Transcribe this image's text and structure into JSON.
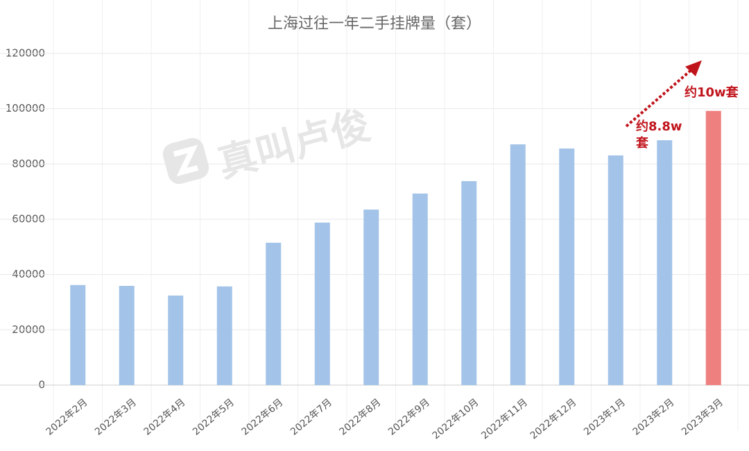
{
  "chart_data": {
    "type": "bar",
    "title": "上海过往一年二手挂牌量（套）",
    "watermark": "真叫卢俊",
    "categories": [
      "2022年2月",
      "2022年3月",
      "2022年4月",
      "2022年5月",
      "2022年6月",
      "2022年7月",
      "2022年8月",
      "2022年9月",
      "2022年10月",
      "2022年11月",
      "2022年12月",
      "2023年1月",
      "2023年2月",
      "2023年3月"
    ],
    "values": [
      36200,
      35900,
      32400,
      35700,
      51500,
      58800,
      63500,
      69300,
      73800,
      87100,
      85600,
      83100,
      88600,
      99200
    ],
    "colors": [
      "#a3c4e8",
      "#a3c4e8",
      "#a3c4e8",
      "#a3c4e8",
      "#a3c4e8",
      "#a3c4e8",
      "#a3c4e8",
      "#a3c4e8",
      "#a3c4e8",
      "#a3c4e8",
      "#a3c4e8",
      "#a3c4e8",
      "#a3c4e8",
      "#ef8080"
    ],
    "ylim": [
      0,
      120000
    ],
    "yticks": [
      0,
      20000,
      40000,
      60000,
      80000,
      100000,
      120000
    ],
    "grid": true,
    "annotations": [
      {
        "lines": [
          "约8.8w",
          "套"
        ]
      },
      {
        "lines": [
          "约10w套"
        ]
      }
    ]
  }
}
